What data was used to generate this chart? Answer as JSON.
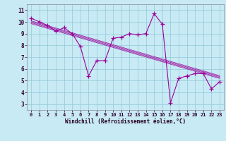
{
  "title": "",
  "xlabel": "Windchill (Refroidissement éolien,°C)",
  "bg_color": "#c8eaf5",
  "line_color": "#990099",
  "marker": "+",
  "markersize": 4,
  "linewidth": 0.8,
  "xlim": [
    -0.5,
    23.5
  ],
  "ylim": [
    2.5,
    11.5
  ],
  "xticks": [
    0,
    1,
    2,
    3,
    4,
    5,
    6,
    7,
    8,
    9,
    10,
    11,
    12,
    13,
    14,
    15,
    16,
    17,
    18,
    19,
    20,
    21,
    22,
    23
  ],
  "yticks": [
    3,
    4,
    5,
    6,
    7,
    8,
    9,
    10,
    11
  ],
  "grid_color": "#90c8d8",
  "hours": [
    0,
    1,
    2,
    3,
    4,
    5,
    6,
    7,
    8,
    9,
    10,
    11,
    12,
    13,
    14,
    15,
    16,
    17,
    18,
    19,
    20,
    21,
    22,
    23
  ],
  "values": [
    10.3,
    10.0,
    9.7,
    9.2,
    9.5,
    9.0,
    7.9,
    5.4,
    6.7,
    6.7,
    8.6,
    8.7,
    9.0,
    8.9,
    9.0,
    10.7,
    9.8,
    3.1,
    5.2,
    5.4,
    5.6,
    5.6,
    4.3,
    4.9
  ],
  "regression_color": "#990099",
  "reg_linewidth": 0.6,
  "reg_offsets": [
    -0.12,
    -0.04,
    0.04,
    0.12
  ],
  "spine_color": "#888899",
  "tick_color": "#330033",
  "xlabel_color": "#220022",
  "xlabel_fontsize": 5.5,
  "tick_fontsize": 5.0,
  "markeredgewidth": 0.9
}
